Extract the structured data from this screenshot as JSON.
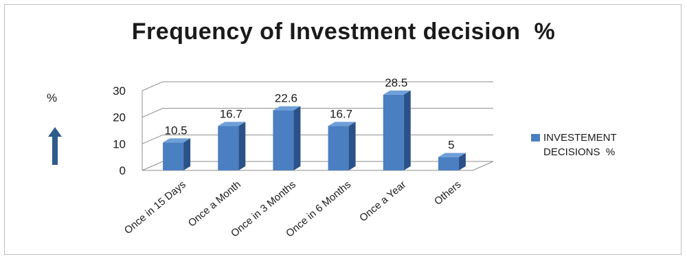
{
  "chart_data": {
    "type": "bar",
    "title": "Frequency of Investment decision  %",
    "ylabel": "%",
    "ylim": [
      0,
      30
    ],
    "yticks": [
      0,
      10,
      20,
      30
    ],
    "categories": [
      "Once in 15 Days",
      "Once a Month",
      "Once in 3 Months",
      "Once in 6 Months",
      "Once a Year",
      "Others"
    ],
    "series": [
      {
        "name": "INVESTEMENT DECISIONS  %",
        "values": [
          10.5,
          16.7,
          22.6,
          16.7,
          28.5,
          5
        ],
        "labels": [
          "10.5",
          "16.7",
          "22.6",
          "16.7",
          "28.5",
          "5"
        ]
      }
    ],
    "legend": {
      "position": "right",
      "lines": [
        "INVESTEMENT",
        "DECISIONS  %"
      ]
    },
    "grid": true,
    "style": "3d-column",
    "colors": {
      "bar_front": "#4a7fc1",
      "bar_side": "#2b5288",
      "bar_top": "#6f9fd8",
      "arrow": "#2f5b8c",
      "grid": "#8c8c8c"
    }
  }
}
